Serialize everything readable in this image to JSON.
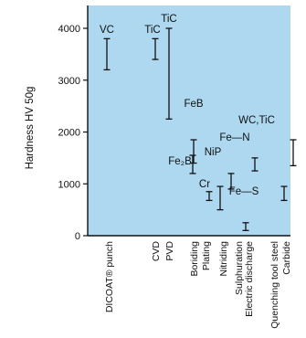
{
  "chart_data": {
    "type": "range",
    "title": "",
    "xlabel": "",
    "ylabel": "Hardness HV 50g",
    "ylim": [
      0,
      4400
    ],
    "yticks": [
      0,
      1000,
      2000,
      3000,
      4000
    ],
    "grid": false,
    "background": "#aed8f0",
    "categories": [
      "DICOAT® punch",
      "CVD",
      "PVD",
      "Boriding",
      "Plating",
      "Nitriding",
      "Sulphuration",
      "Electric discharge",
      "Quenching tool steel",
      "Carbide"
    ],
    "ranges": [
      {
        "label": "VC",
        "min": 3200,
        "max": 3800
      },
      {
        "label": "TiC",
        "min": 3400,
        "max": 3800
      },
      {
        "label": "TiC",
        "min": 2250,
        "max": 4000
      },
      {
        "label": "FeB",
        "min": 1400,
        "max": 1850
      },
      {
        "label": "Fe₂B",
        "min": 1200,
        "max": 1550
      },
      {
        "label": "Cr",
        "min": 680,
        "max": 850
      },
      {
        "label": "NiP",
        "min": 500,
        "max": 950
      },
      {
        "label": "Fe—N",
        "min": 900,
        "max": 1200
      },
      {
        "label": "Fe—S",
        "min": 100,
        "max": 250
      },
      {
        "label": "WC,TiC",
        "min": 1250,
        "max": 1500
      },
      {
        "label": "",
        "min": 680,
        "max": 950
      },
      {
        "label": "",
        "min": 1350,
        "max": 1850
      }
    ]
  }
}
